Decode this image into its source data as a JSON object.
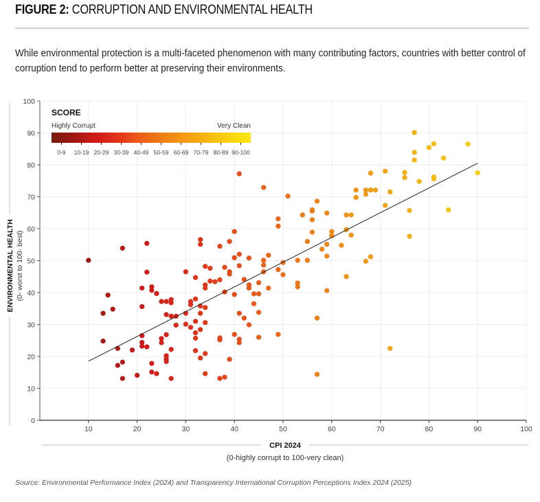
{
  "header": {
    "title_bold": "FIGURE 2:",
    "title_rest": "CORRUPTION AND ENVIRONMENTAL HEALTH",
    "subtitle": "While environmental protection is a multi-faceted phenomenon with many contributing factors, countries with better control of corruption tend to perform better at preserving their environments."
  },
  "footer": {
    "source": "Source: Environmental Performance Index (2024) and Transparency International Corruption Perceptions Index 2024 (2025)"
  },
  "chart_data": {
    "type": "scatter",
    "title": "CORRUPTION AND ENVIRONMENTAL HEALTH",
    "xlabel": "CPI 2024",
    "xlabel_sub": "(0-highly corrupt to 100-very clean)",
    "ylabel": "ENVIRONMENTAL HEALTH",
    "ylabel_sub": "(0- worst to 100- best)",
    "xlim": [
      0,
      100
    ],
    "ylim": [
      0,
      100
    ],
    "xticks": [
      10,
      20,
      30,
      40,
      50,
      60,
      70,
      80,
      90,
      100
    ],
    "yticks": [
      0,
      10,
      20,
      30,
      40,
      50,
      60,
      70,
      80,
      90,
      100
    ],
    "grid": true,
    "legend": {
      "placement": "top-left",
      "title": "SCORE",
      "low_label": "Highly Corrupt",
      "high_label": "Very Clean",
      "bins": [
        "0-9",
        "10-19",
        "20-29",
        "30-39",
        "40-49",
        "50-59",
        "60-69",
        "70-79",
        "80-89",
        "90-100"
      ],
      "colors": [
        "#7a1a0e",
        "#9e1812",
        "#d11a1a",
        "#e2361a",
        "#ea5d18",
        "#ef7f15",
        "#f39a12",
        "#f7b712",
        "#f9d10f",
        "#fbe90f"
      ]
    },
    "trendline": {
      "x": [
        10,
        90
      ],
      "y": [
        18.5,
        80.5
      ]
    },
    "points": [
      [
        10,
        50.1
      ],
      [
        13,
        33.5
      ],
      [
        13,
        24.8
      ],
      [
        14,
        39.2
      ],
      [
        15,
        34.8
      ],
      [
        16,
        22.5
      ],
      [
        16,
        17.2
      ],
      [
        17,
        53.9
      ],
      [
        17,
        18.2
      ],
      [
        17,
        13.1
      ],
      [
        19,
        22.0
      ],
      [
        20,
        14.1
      ],
      [
        21,
        41.4
      ],
      [
        21,
        35.6
      ],
      [
        21,
        26.5
      ],
      [
        21,
        24.4
      ],
      [
        21,
        23.2
      ],
      [
        22,
        55.4
      ],
      [
        22,
        46.4
      ],
      [
        22,
        23.0
      ],
      [
        23,
        41.8
      ],
      [
        23,
        40.7
      ],
      [
        23,
        17.8
      ],
      [
        23,
        15.1
      ],
      [
        24,
        39.7
      ],
      [
        24,
        14.6
      ],
      [
        25,
        37.2
      ],
      [
        25,
        25.6
      ],
      [
        25,
        24.3
      ],
      [
        26,
        37.2
      ],
      [
        26,
        33.1
      ],
      [
        26,
        26.8
      ],
      [
        26,
        20.2
      ],
      [
        26,
        19.2
      ],
      [
        26,
        18.4
      ],
      [
        27,
        37.8
      ],
      [
        27,
        36.8
      ],
      [
        27,
        32.6
      ],
      [
        27,
        22.2
      ],
      [
        27,
        13.1
      ],
      [
        28,
        32.6
      ],
      [
        28,
        29.8
      ],
      [
        30,
        46.5
      ],
      [
        30,
        33.5
      ],
      [
        30,
        30.1
      ],
      [
        31,
        37.2
      ],
      [
        31,
        36.2
      ],
      [
        31,
        29.1
      ],
      [
        32,
        44.7
      ],
      [
        32,
        38.0
      ],
      [
        32,
        31.0
      ],
      [
        32,
        27.4
      ],
      [
        32,
        25.7
      ],
      [
        32,
        21.8
      ],
      [
        33,
        56.6
      ],
      [
        33,
        55.1
      ],
      [
        33,
        35.8
      ],
      [
        33,
        33.5
      ],
      [
        33,
        28.4
      ],
      [
        33,
        19.5
      ],
      [
        34,
        48.2
      ],
      [
        34,
        42.4
      ],
      [
        34,
        41.4
      ],
      [
        34,
        35.3
      ],
      [
        34,
        30.6
      ],
      [
        34,
        20.9
      ],
      [
        34,
        14.6
      ],
      [
        35,
        47.6
      ],
      [
        35,
        43.6
      ],
      [
        36,
        43.4
      ],
      [
        37,
        54.5
      ],
      [
        37,
        44.0
      ],
      [
        37,
        25.8
      ],
      [
        37,
        25.2
      ],
      [
        37,
        13.1
      ],
      [
        38,
        47.9
      ],
      [
        38,
        40.2
      ],
      [
        38,
        13.5
      ],
      [
        39,
        56.0
      ],
      [
        39,
        46.5
      ],
      [
        39,
        45.8
      ],
      [
        39,
        19.1
      ],
      [
        40,
        59.1
      ],
      [
        40,
        50.9
      ],
      [
        40,
        39.4
      ],
      [
        40,
        26.9
      ],
      [
        41,
        77.2
      ],
      [
        41,
        52.0
      ],
      [
        41,
        48.4
      ],
      [
        41,
        33.5
      ],
      [
        41,
        25.4
      ],
      [
        41,
        24.3
      ],
      [
        42,
        44.1
      ],
      [
        42,
        32.0
      ],
      [
        43,
        50.8
      ],
      [
        43,
        42.4
      ],
      [
        43,
        41.4
      ],
      [
        43,
        29.9
      ],
      [
        44,
        36.5
      ],
      [
        44,
        39.6
      ],
      [
        45,
        43.1
      ],
      [
        45,
        39.6
      ],
      [
        45,
        33.8
      ],
      [
        45,
        26.0
      ],
      [
        46,
        72.9
      ],
      [
        46,
        50.1
      ],
      [
        46,
        48.6
      ],
      [
        46,
        46.5
      ],
      [
        47,
        51.7
      ],
      [
        47,
        41.4
      ],
      [
        49,
        63.1
      ],
      [
        49,
        60.8
      ],
      [
        49,
        47.2
      ],
      [
        49,
        26.9
      ],
      [
        50,
        49.4
      ],
      [
        50,
        45.6
      ],
      [
        51,
        70.2
      ],
      [
        53,
        50.1
      ],
      [
        53,
        43.0
      ],
      [
        53,
        41.8
      ],
      [
        54,
        64.3
      ],
      [
        55,
        56.0
      ],
      [
        55,
        50.1
      ],
      [
        56,
        65.9
      ],
      [
        56,
        65.5
      ],
      [
        56,
        62.8
      ],
      [
        56,
        58.9
      ],
      [
        57,
        68.6
      ],
      [
        57,
        32.0
      ],
      [
        57,
        14.4
      ],
      [
        58,
        53.6
      ],
      [
        59,
        64.9
      ],
      [
        59,
        55.1
      ],
      [
        59,
        51.4
      ],
      [
        59,
        40.6
      ],
      [
        60,
        59.1
      ],
      [
        60,
        57.8
      ],
      [
        62,
        54.8
      ],
      [
        63,
        64.3
      ],
      [
        63,
        59.7
      ],
      [
        63,
        45.0
      ],
      [
        64,
        64.3
      ],
      [
        64,
        58.0
      ],
      [
        65,
        72.1
      ],
      [
        65,
        69.8
      ],
      [
        67,
        72.1
      ],
      [
        67,
        70.8
      ],
      [
        67,
        49.8
      ],
      [
        68,
        77.4
      ],
      [
        68,
        72.1
      ],
      [
        68,
        51.2
      ],
      [
        69,
        72.1
      ],
      [
        71,
        78.0
      ],
      [
        71,
        67.3
      ],
      [
        72,
        71.5
      ],
      [
        72,
        22.5
      ],
      [
        75,
        77.6
      ],
      [
        75,
        76.0
      ],
      [
        76,
        65.7
      ],
      [
        76,
        57.6
      ],
      [
        77,
        90.1
      ],
      [
        77,
        83.9
      ],
      [
        77,
        81.5
      ],
      [
        78,
        74.8
      ],
      [
        80,
        85.4
      ],
      [
        81,
        86.6
      ],
      [
        81,
        76.2
      ],
      [
        81,
        75.6
      ],
      [
        83,
        82.1
      ],
      [
        84,
        65.9
      ],
      [
        88,
        86.5
      ],
      [
        90,
        77.5
      ]
    ]
  }
}
